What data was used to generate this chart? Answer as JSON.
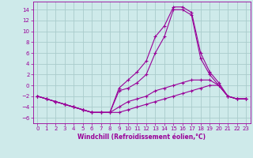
{
  "xlabel": "Windchill (Refroidissement éolien,°C)",
  "background_color": "#ceeaea",
  "grid_color": "#aacccc",
  "line_color": "#990099",
  "xlim": [
    -0.5,
    23.5
  ],
  "ylim": [
    -7,
    15.5
  ],
  "xticks": [
    0,
    1,
    2,
    3,
    4,
    5,
    6,
    7,
    8,
    9,
    10,
    11,
    12,
    13,
    14,
    15,
    16,
    17,
    18,
    19,
    20,
    21,
    22,
    23
  ],
  "yticks": [
    -6,
    -4,
    -2,
    0,
    2,
    4,
    6,
    8,
    10,
    12,
    14
  ],
  "series": [
    {
      "x": [
        0,
        1,
        2,
        3,
        4,
        5,
        6,
        7,
        8,
        9,
        10,
        11,
        12,
        13,
        14,
        15,
        16,
        17,
        18,
        19,
        20,
        21,
        22,
        23
      ],
      "y": [
        -2,
        -2.5,
        -3,
        -3.5,
        -4,
        -4.5,
        -5,
        -5,
        -5,
        -0.5,
        1,
        2.5,
        4.5,
        9,
        11,
        14.5,
        14.5,
        13.5,
        6,
        2.5,
        0.5,
        -2,
        -2.5,
        -2.5
      ]
    },
    {
      "x": [
        0,
        1,
        2,
        3,
        4,
        5,
        6,
        7,
        8,
        9,
        10,
        11,
        12,
        13,
        14,
        15,
        16,
        17,
        18,
        19,
        20,
        21,
        22,
        23
      ],
      "y": [
        -2,
        -2.5,
        -3,
        -3.5,
        -4,
        -4.5,
        -5,
        -5,
        -5,
        -1,
        -0.5,
        0.5,
        2,
        6,
        9,
        14,
        14,
        13,
        5,
        2,
        0,
        -2,
        -2.5,
        -2.5
      ]
    },
    {
      "x": [
        0,
        1,
        2,
        3,
        4,
        5,
        6,
        7,
        8,
        9,
        10,
        11,
        12,
        13,
        14,
        15,
        16,
        17,
        18,
        19,
        20,
        21,
        22,
        23
      ],
      "y": [
        -2,
        -2.5,
        -3,
        -3.5,
        -4,
        -4.5,
        -5,
        -5,
        -5,
        -4,
        -3,
        -2.5,
        -2,
        -1,
        -0.5,
        0,
        0.5,
        1,
        1,
        1,
        0,
        -2,
        -2.5,
        -2.5
      ]
    },
    {
      "x": [
        0,
        1,
        2,
        3,
        4,
        5,
        6,
        7,
        8,
        9,
        10,
        11,
        12,
        13,
        14,
        15,
        16,
        17,
        18,
        19,
        20,
        21,
        22,
        23
      ],
      "y": [
        -2,
        -2.5,
        -3,
        -3.5,
        -4,
        -4.5,
        -5,
        -5,
        -5,
        -5,
        -4.5,
        -4,
        -3.5,
        -3,
        -2.5,
        -2,
        -1.5,
        -1,
        -0.5,
        0,
        0,
        -2,
        -2.5,
        -2.5
      ]
    }
  ]
}
